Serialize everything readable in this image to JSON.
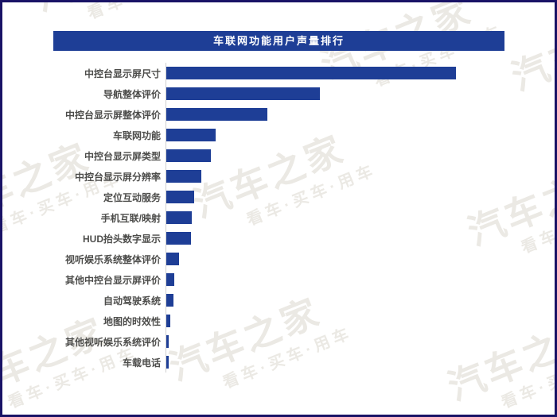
{
  "window": {
    "title_banner": "车联网功能用户声量排行"
  },
  "colors": {
    "accent_blue": "#1e3e96",
    "frame_border": "#191366",
    "axis_line": "#cfcfcf",
    "label_text": "#4d4d4b",
    "title_text": "#ffffff",
    "watermark": "#ebe9e4"
  },
  "watermark": {
    "brand": "汽车之家",
    "tagline": "看车·买车·用车"
  },
  "chart_data": {
    "type": "bar",
    "orientation": "horizontal",
    "title": "车联网功能用户声量排行",
    "categories": [
      "中控台显示屏尺寸",
      "导航整体评价",
      "中控台显示屏整体评价",
      "车联网功能",
      "中控台显示屏类型",
      "中控台显示屏分辨率",
      "定位互动服务",
      "手机互联/映射",
      "HUD抬头数字显示",
      "视听娱乐系统整体评价",
      "其他中控台显示屏评价",
      "自动驾驶系统",
      "地图的时效性",
      "其他视听娱乐系统评价",
      "车载电话"
    ],
    "values": [
      100,
      53,
      35,
      17,
      15.5,
      12,
      9.5,
      8.7,
      8.5,
      4.4,
      2.7,
      2.5,
      1.4,
      0.8,
      0.8
    ],
    "value_note": "relative voice volume, max normalized to 100; no numeric axis shown in chart",
    "xlabel": "",
    "ylabel": "",
    "grid": false,
    "legend": false,
    "axis_ticks_shown": false,
    "bar_color": "#1e3e96"
  }
}
